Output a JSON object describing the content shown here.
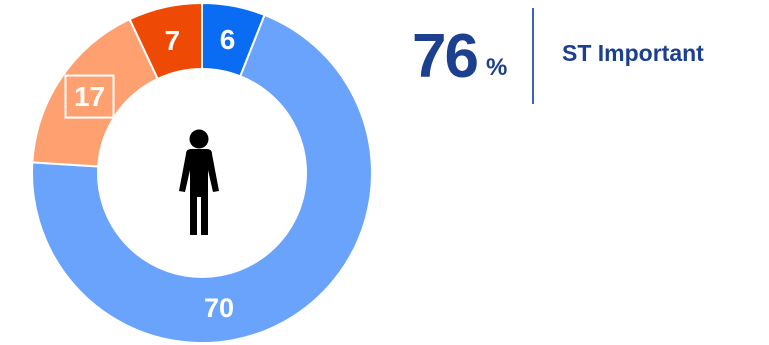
{
  "chart_data": {
    "type": "pie",
    "style": "donut",
    "categories": [
      "",
      "",
      "",
      ""
    ],
    "values": [
      6,
      70,
      17,
      7
    ],
    "labels": [
      "6",
      "70",
      "17",
      "7"
    ],
    "colors": [
      "#0a6cf2",
      "#6aa3fb",
      "#ffa070",
      "#ef4a05"
    ],
    "highlight": "17",
    "center_icon": "person-icon",
    "title": "",
    "legend": "none"
  },
  "stat": {
    "value": "76",
    "unit": "%",
    "caption": "ST Important",
    "color": "#1c3f8f"
  }
}
